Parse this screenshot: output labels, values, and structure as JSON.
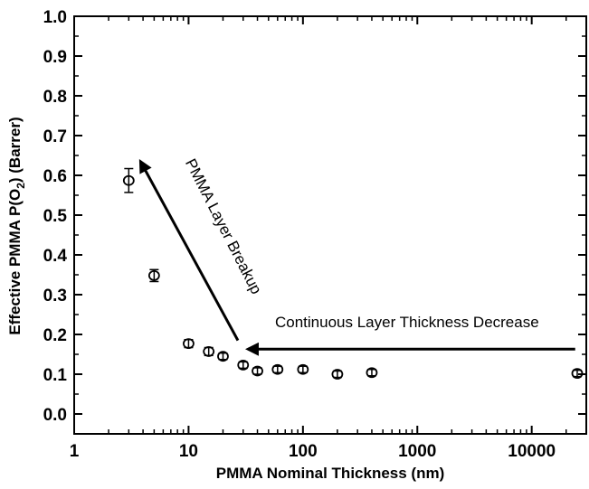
{
  "chart_data": {
    "type": "scatter",
    "title": "",
    "xlabel": "PMMA Nominal Thickness (nm)",
    "ylabel": {
      "prefix": "Effective PMMA P(O",
      "subscript": "2",
      "suffix": ") (Barrer)"
    },
    "x_scale": "log",
    "xlim": [
      1,
      30000
    ],
    "ylim": [
      -0.05,
      1.0
    ],
    "x_ticks": [
      1,
      10,
      100,
      1000,
      10000
    ],
    "x_tick_labels": [
      "1",
      "10",
      "100",
      "1000",
      "10000"
    ],
    "y_ticks": [
      0.0,
      0.1,
      0.2,
      0.3,
      0.4,
      0.5,
      0.6,
      0.7,
      0.8,
      0.9,
      1.0
    ],
    "y_tick_labels": [
      "0.0",
      "0.1",
      "0.2",
      "0.3",
      "0.4",
      "0.5",
      "0.6",
      "0.7",
      "0.8",
      "0.9",
      "1.0"
    ],
    "grid": false,
    "points": [
      {
        "x": 3,
        "y": 0.587,
        "err": 0.03
      },
      {
        "x": 5,
        "y": 0.348,
        "err": 0.015
      },
      {
        "x": 10,
        "y": 0.177,
        "err": 0.01
      },
      {
        "x": 15,
        "y": 0.157,
        "err": 0.01
      },
      {
        "x": 20,
        "y": 0.145,
        "err": 0.008
      },
      {
        "x": 30,
        "y": 0.123,
        "err": 0.008
      },
      {
        "x": 40,
        "y": 0.108,
        "err": 0.008
      },
      {
        "x": 60,
        "y": 0.112,
        "err": 0.008
      },
      {
        "x": 100,
        "y": 0.112,
        "err": 0.008
      },
      {
        "x": 200,
        "y": 0.1,
        "err": 0.008
      },
      {
        "x": 400,
        "y": 0.104,
        "err": 0.008
      },
      {
        "x": 25000,
        "y": 0.102,
        "err": 0.008
      }
    ],
    "annotations": [
      {
        "text": "PMMA Layer Breakup",
        "arrow_from": [
          27,
          0.185
        ],
        "arrow_to": [
          3.8,
          0.635
        ]
      },
      {
        "text": "Continuous Layer Thickness Decrease",
        "arrow_from": [
          24000,
          0.163
        ],
        "arrow_to": [
          33,
          0.163
        ]
      }
    ]
  }
}
